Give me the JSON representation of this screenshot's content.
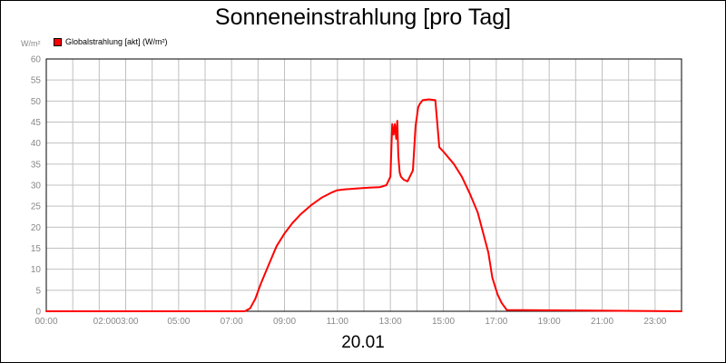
{
  "chart_data": {
    "type": "line",
    "title": "Sonneneinstrahlung [pro Tag]",
    "ylabel": "W/m²",
    "xlabel": "20.01",
    "ylim": [
      0,
      60
    ],
    "y_ticks": [
      "0",
      "5",
      "10",
      "15",
      "20",
      "25",
      "30",
      "35",
      "40",
      "45",
      "50",
      "55",
      "60"
    ],
    "x_ticks": [
      "00:00",
      "02:00",
      "03:00",
      "05:00",
      "07:00",
      "09:00",
      "11:00",
      "13:00",
      "15:00",
      "17:00",
      "19:00",
      "21:00",
      "23:00"
    ],
    "grid": true,
    "legend_position": "top-left",
    "colors": {
      "series": "#ff0000",
      "grid": "#c0c0c0",
      "tick_text": "#888888"
    },
    "series": [
      {
        "name": "Globalstrahlung [akt] (W/m²)",
        "x_hours": [
          0,
          7.5,
          7.7,
          7.9,
          8.1,
          8.4,
          8.7,
          9.0,
          9.3,
          9.6,
          10.0,
          10.4,
          10.8,
          11.0,
          11.3,
          11.7,
          12.2,
          12.6,
          12.85,
          13.0,
          13.07,
          13.12,
          13.17,
          13.22,
          13.26,
          13.3,
          13.35,
          13.4,
          13.5,
          13.65,
          13.85,
          13.95,
          14.05,
          14.12,
          14.22,
          14.45,
          14.7,
          14.85,
          15.0,
          15.4,
          15.7,
          16.0,
          16.3,
          16.7,
          16.85,
          17.05,
          17.2,
          17.4,
          24
        ],
        "values": [
          0,
          0,
          0.7,
          3,
          6.5,
          11,
          15.5,
          18.5,
          21,
          23,
          25.2,
          27,
          28.3,
          28.8,
          29,
          29.2,
          29.4,
          29.5,
          30,
          32,
          44.5,
          42,
          44.5,
          41,
          45.3,
          37,
          33,
          32,
          31.3,
          30.9,
          33.5,
          44,
          48.5,
          49.4,
          50.2,
          50.4,
          50.2,
          39,
          38,
          35,
          32,
          28,
          23.5,
          14,
          8,
          4,
          2,
          0.3,
          0
        ]
      }
    ]
  }
}
